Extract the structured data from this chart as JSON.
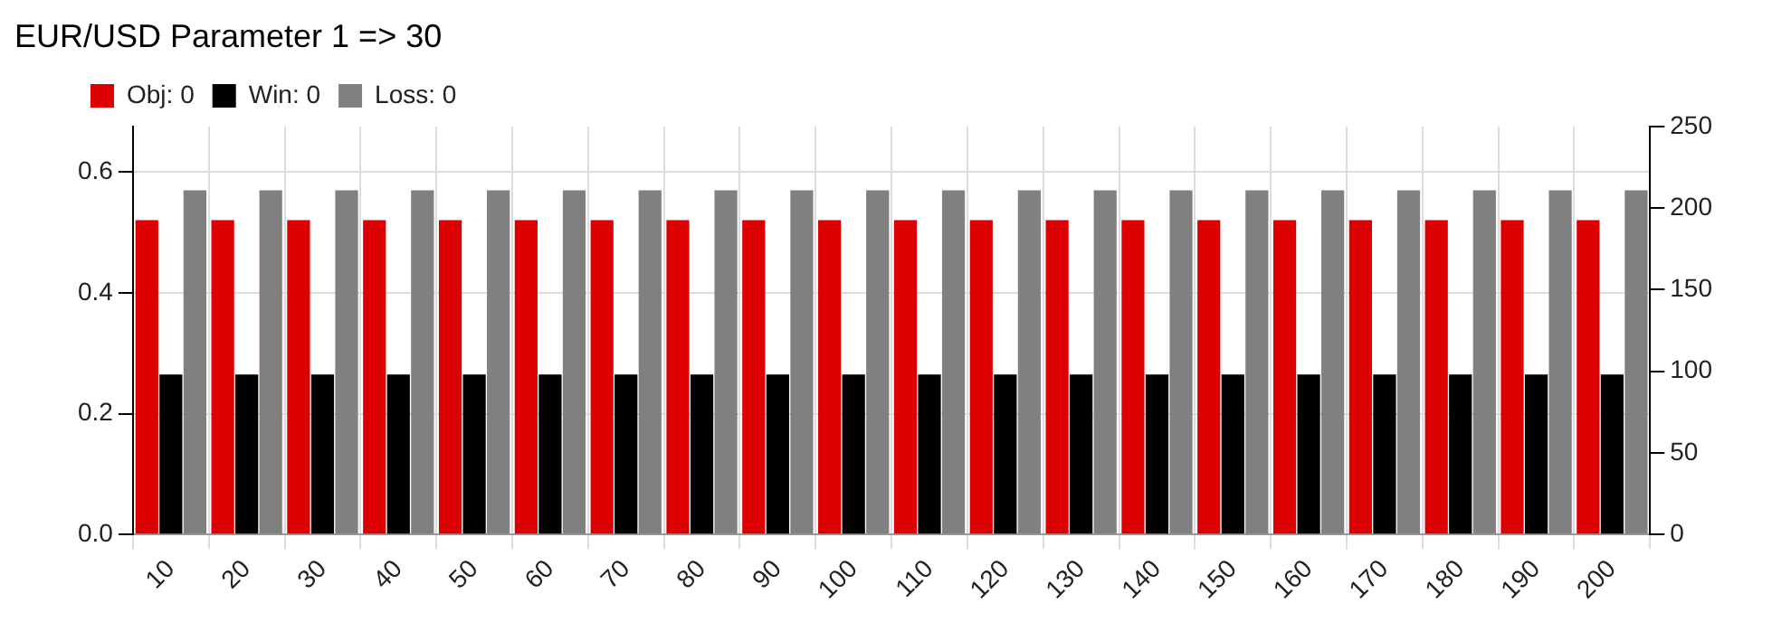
{
  "chart_data": {
    "type": "bar",
    "title": "EUR/USD Parameter 1 => 30",
    "categories": [
      "10",
      "20",
      "30",
      "40",
      "50",
      "60",
      "70",
      "80",
      "90",
      "100",
      "110",
      "120",
      "130",
      "140",
      "150",
      "160",
      "170",
      "180",
      "190",
      "200"
    ],
    "series": [
      {
        "name": "Obj: 0",
        "color": "#dd0000",
        "values": [
          0.52,
          0.52,
          0.52,
          0.52,
          0.52,
          0.52,
          0.52,
          0.52,
          0.52,
          0.52,
          0.52,
          0.52,
          0.52,
          0.52,
          0.52,
          0.52,
          0.52,
          0.52,
          0.52,
          0.52
        ]
      },
      {
        "name": "Win: 0",
        "color": "#000000",
        "axis": "y2",
        "values": [
          98,
          98,
          98,
          98,
          98,
          98,
          98,
          98,
          98,
          98,
          98,
          98,
          98,
          98,
          98,
          98,
          98,
          98,
          98,
          98
        ]
      },
      {
        "name": "Loss: 0",
        "color": "#808080",
        "axis": "y2",
        "values": [
          211,
          211,
          211,
          211,
          211,
          211,
          211,
          211,
          211,
          211,
          211,
          211,
          211,
          211,
          211,
          211,
          211,
          211,
          211,
          211
        ]
      }
    ],
    "ylim": [
      0,
      0.675
    ],
    "yticks": [
      {
        "value": 0,
        "label": "0.0"
      },
      0.2,
      0.4,
      0.6
    ],
    "y2lim": [
      0,
      250
    ],
    "y2ticks": [
      0,
      50,
      100,
      150,
      200,
      250
    ],
    "grid": true,
    "legend": "top left"
  }
}
